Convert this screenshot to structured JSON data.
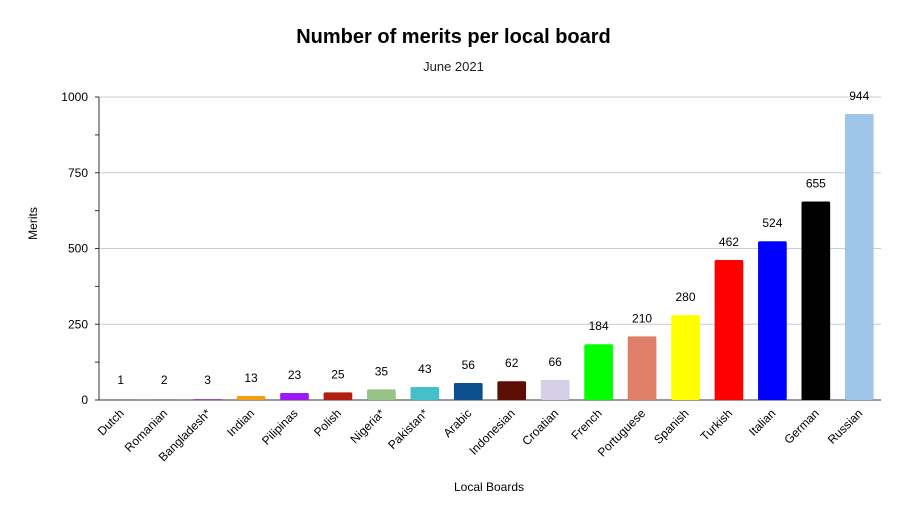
{
  "chart_data": {
    "type": "bar",
    "title": "Number of merits per local board",
    "subtitle": "June 2021",
    "xlabel": "Local Boards",
    "ylabel": "Merits",
    "ylim": [
      0,
      1000
    ],
    "yticks": [
      "0",
      "250",
      "500",
      "750",
      "1000"
    ],
    "grid": true,
    "legend": "none",
    "categories": [
      "Dutch",
      "Romanian",
      "Bangladesh*",
      "Indian",
      "Pilipinas",
      "Polish",
      "Nigeria*",
      "Pakistan*",
      "Arabic",
      "Indonesian",
      "Croatian",
      "French",
      "Portuguese",
      "Spanish",
      "Turkish",
      "Italian",
      "German",
      "Russian"
    ],
    "values": [
      1,
      2,
      3,
      13,
      23,
      25,
      35,
      43,
      56,
      62,
      66,
      184,
      210,
      280,
      462,
      524,
      655,
      944
    ],
    "colors": [
      "#222222",
      "#555555",
      "#9c27b0",
      "#f59d0e",
      "#9b19f5",
      "#b1200e",
      "#97c285",
      "#45bfc9",
      "#0b4f8f",
      "#5c0e04",
      "#d5cfe7",
      "#00ff00",
      "#e07f69",
      "#ffff00",
      "#ff0000",
      "#0000ff",
      "#000000",
      "#9fc5e8"
    ]
  }
}
